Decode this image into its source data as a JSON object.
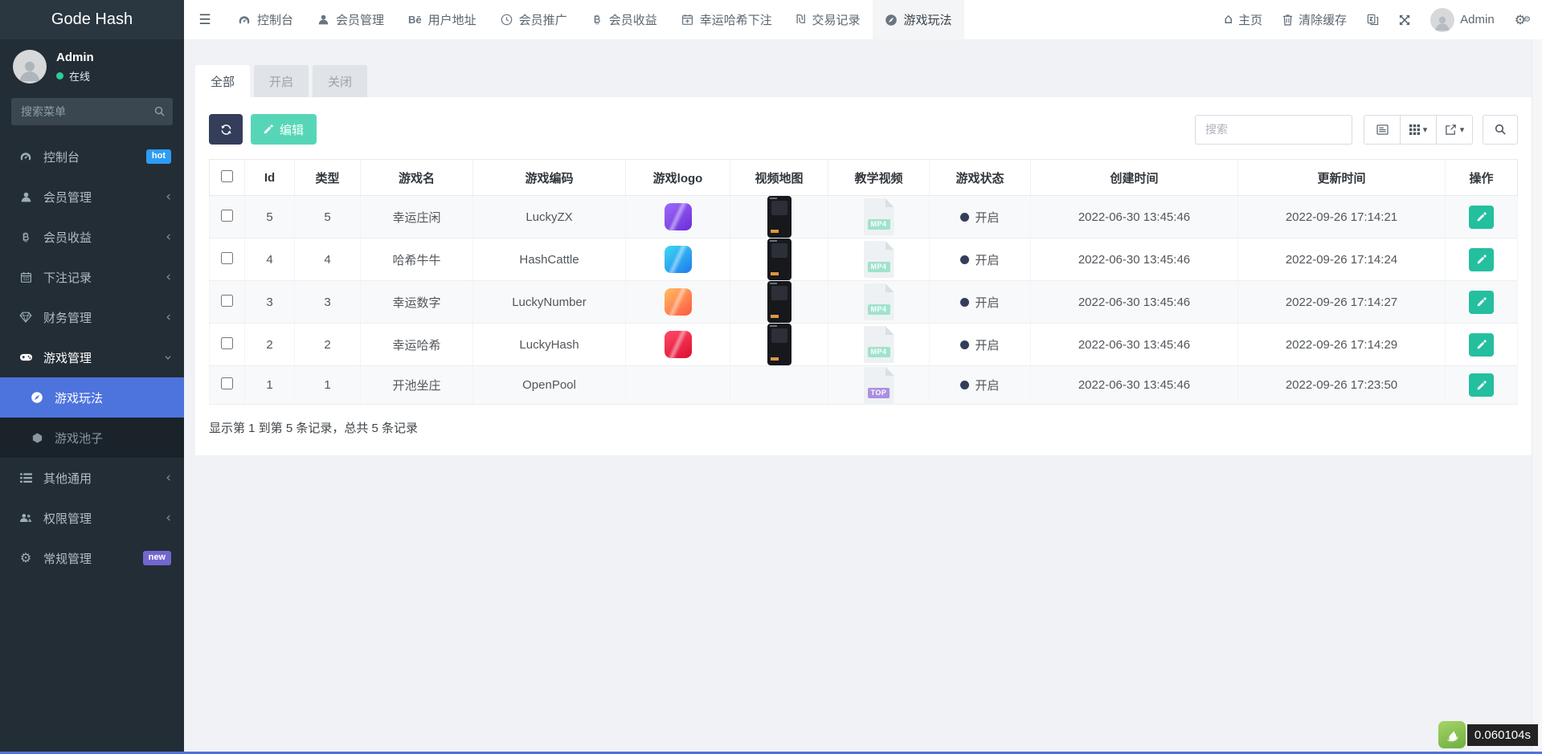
{
  "app": {
    "brand": "Gode Hash",
    "timer": "0.060104s"
  },
  "user": {
    "name": "Admin",
    "status": "在线"
  },
  "colors": {
    "accent": "#4d73dd",
    "teal": "#24bf9f",
    "teal-light": "#56d6b7",
    "navy": "#343e5a",
    "hot": "#2e9cf4",
    "new": "#7266cf",
    "online": "#2ecc9a",
    "timer-green": "#84bb4d"
  },
  "sidebar": {
    "search_placeholder": "搜索菜单",
    "items": [
      {
        "key": "dashboard",
        "label": "控制台",
        "icon": "gauge-icon",
        "badge": "hot"
      },
      {
        "key": "members",
        "label": "会员管理",
        "icon": "user-icon",
        "chevron": true
      },
      {
        "key": "earnings",
        "label": "会员收益",
        "icon": "bitcoin-icon",
        "chevron": true
      },
      {
        "key": "bet-records",
        "label": "下注记录",
        "icon": "calendar-icon",
        "chevron": true
      },
      {
        "key": "finance",
        "label": "财务管理",
        "icon": "gem-icon",
        "chevron": true
      },
      {
        "key": "games",
        "label": "游戏管理",
        "icon": "gamepad-icon",
        "expanded": true,
        "children": [
          {
            "key": "game-play",
            "label": "游戏玩法",
            "icon": "compass-icon",
            "active": true
          },
          {
            "key": "game-pool",
            "label": "游戏池子",
            "icon": "cube-icon"
          }
        ]
      },
      {
        "key": "misc",
        "label": "其他通用",
        "icon": "list-icon",
        "chevron": true
      },
      {
        "key": "permissions",
        "label": "权限管理",
        "icon": "users-icon",
        "chevron": true
      },
      {
        "key": "general",
        "label": "常规管理",
        "icon": "gears-icon",
        "badge": "new"
      }
    ]
  },
  "navbar": {
    "tabs": [
      {
        "key": "dashboard",
        "label": "控制台",
        "icon": "gauge-icon"
      },
      {
        "key": "members",
        "label": "会员管理",
        "icon": "user-icon"
      },
      {
        "key": "addresses",
        "label": "用户地址",
        "icon": "be-icon"
      },
      {
        "key": "promotion",
        "label": "会员推广",
        "icon": "promote-icon"
      },
      {
        "key": "earnings",
        "label": "会员收益",
        "icon": "bitcoin-icon"
      },
      {
        "key": "lucky-bets",
        "label": "幸运哈希下注",
        "icon": "calendar-plus-icon"
      },
      {
        "key": "transactions",
        "label": "交易记录",
        "icon": "shekel-icon"
      },
      {
        "key": "gameplay",
        "label": "游戏玩法",
        "icon": "compass-icon",
        "active": true
      }
    ],
    "right": {
      "home": "主页",
      "clear_cache": "清除缓存",
      "user": "Admin"
    }
  },
  "filter_tabs": [
    {
      "key": "all",
      "label": "全部",
      "active": true
    },
    {
      "key": "open",
      "label": "开启"
    },
    {
      "key": "closed",
      "label": "关闭"
    }
  ],
  "toolbar": {
    "edit_label": "编辑",
    "search_placeholder": "搜索"
  },
  "table": {
    "headers": [
      "Id",
      "类型",
      "游戏名",
      "游戏编码",
      "游戏logo",
      "视频地图",
      "教学视频",
      "游戏状态",
      "创建时间",
      "更新时间",
      "操作"
    ],
    "rows": [
      {
        "id": "5",
        "type": "5",
        "name": "幸运庄闲",
        "code": "LuckyZX",
        "logo": "purple",
        "has_video_map": true,
        "file_label": "MP4",
        "status": "开启",
        "created": "2022-06-30 13:45:46",
        "updated": "2022-09-26 17:14:21"
      },
      {
        "id": "4",
        "type": "4",
        "name": "哈希牛牛",
        "code": "HashCattle",
        "logo": "cyan",
        "has_video_map": true,
        "file_label": "MP4",
        "status": "开启",
        "created": "2022-06-30 13:45:46",
        "updated": "2022-09-26 17:14:24"
      },
      {
        "id": "3",
        "type": "3",
        "name": "幸运数字",
        "code": "LuckyNumber",
        "logo": "orange",
        "has_video_map": true,
        "file_label": "MP4",
        "status": "开启",
        "created": "2022-06-30 13:45:46",
        "updated": "2022-09-26 17:14:27"
      },
      {
        "id": "2",
        "type": "2",
        "name": "幸运哈希",
        "code": "LuckyHash",
        "logo": "red",
        "has_video_map": true,
        "file_label": "MP4",
        "status": "开启",
        "created": "2022-06-30 13:45:46",
        "updated": "2022-09-26 17:14:29"
      },
      {
        "id": "1",
        "type": "1",
        "name": "开池坐庄",
        "code": "OpenPool",
        "logo": null,
        "has_video_map": false,
        "file_label": "TOP",
        "status": "开启",
        "created": "2022-06-30 13:45:46",
        "updated": "2022-09-26 17:23:50"
      }
    ]
  },
  "footer": {
    "summary": "显示第 1 到第 5 条记录，总共 5 条记录"
  }
}
